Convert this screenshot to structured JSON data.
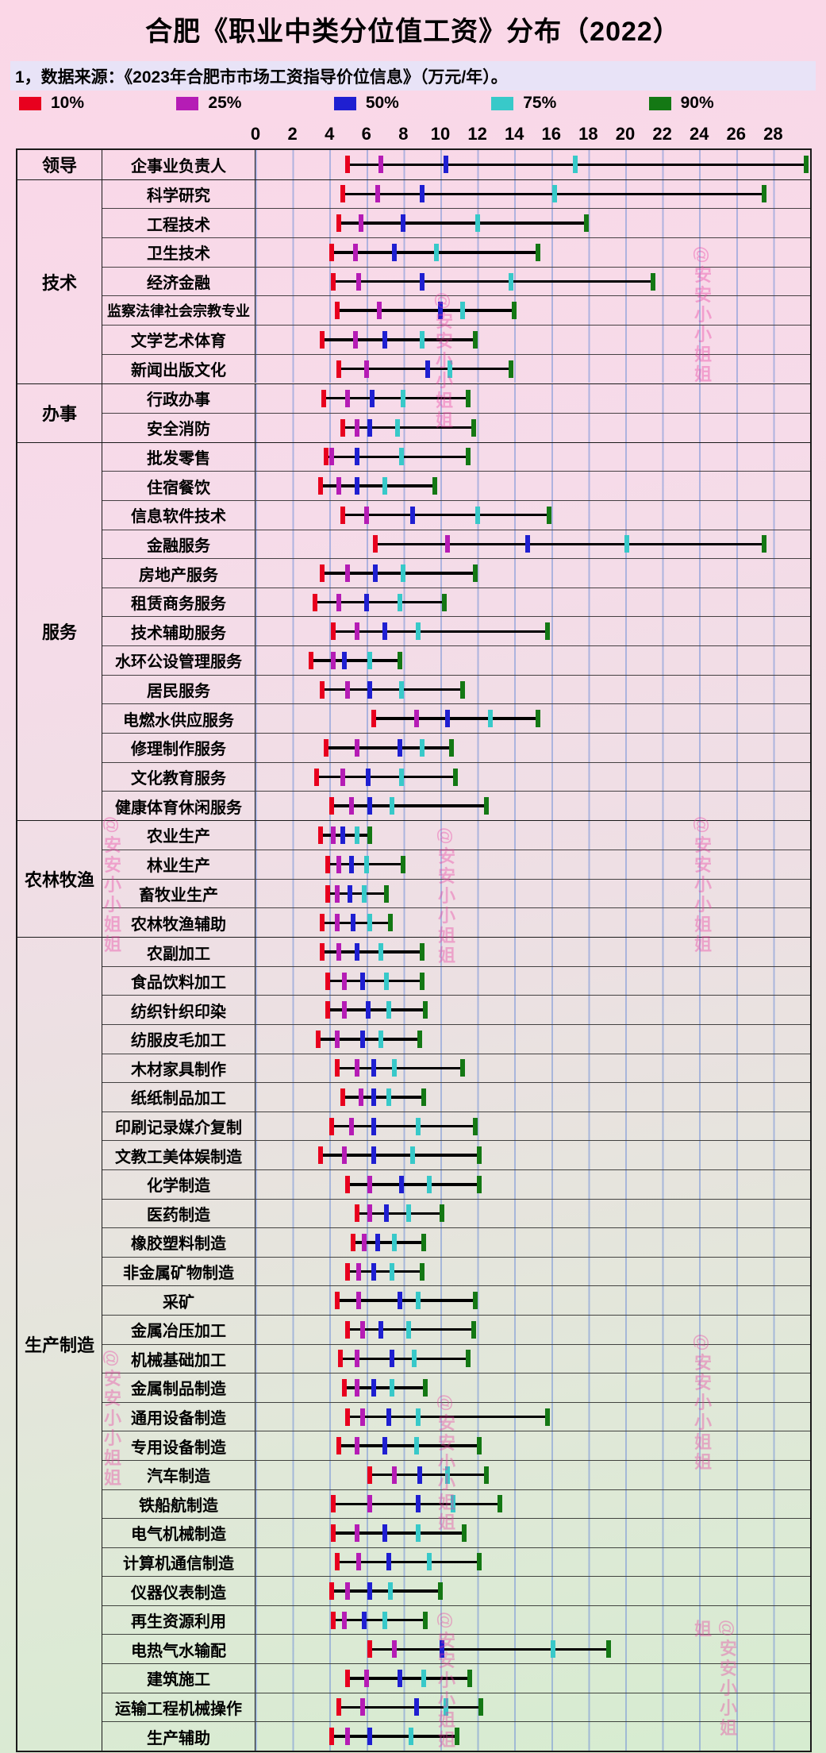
{
  "title": "合肥《职业中类分位值工资》分布（2022）",
  "note": "1，数据来源：《2023年合肥市市场工资指导价位信息》（万元/年）。",
  "watermark_text": "@安安小小姐姐",
  "legend": [
    {
      "label": "10%",
      "color": "#e8001e"
    },
    {
      "label": "25%",
      "color": "#b51cb5"
    },
    {
      "label": "50%",
      "color": "#1f1fd1"
    },
    {
      "label": "75%",
      "color": "#38c9c9"
    },
    {
      "label": "90%",
      "color": "#147814"
    }
  ],
  "chart_data": {
    "type": "scatter",
    "subtype": "percentile-range-dumbbell",
    "title": "合肥《职业中类分位值工资》分布（2022）",
    "unit": "万元/年",
    "percentiles": [
      "10%",
      "25%",
      "50%",
      "75%",
      "90%"
    ],
    "xticks": [
      0,
      2,
      4,
      6,
      8,
      10,
      12,
      14,
      16,
      18,
      20,
      22,
      24,
      26,
      28
    ],
    "xlim": [
      0,
      30
    ],
    "grid": true,
    "groups": [
      {
        "name": "领导",
        "rows": [
          {
            "label": "企事业负责人",
            "values": [
              5.0,
              6.8,
              10.3,
              17.3,
              29.8
            ]
          }
        ]
      },
      {
        "name": "技术",
        "rows": [
          {
            "label": "科学研究",
            "values": [
              4.7,
              6.6,
              9.0,
              16.2,
              27.5
            ]
          },
          {
            "label": "工程技术",
            "values": [
              4.5,
              5.7,
              8.0,
              12.0,
              17.9
            ]
          },
          {
            "label": "卫生技术",
            "values": [
              4.1,
              5.4,
              7.5,
              9.8,
              15.3
            ]
          },
          {
            "label": "经济金融",
            "values": [
              4.2,
              5.6,
              9.0,
              13.8,
              21.5
            ]
          },
          {
            "label": "监察法律社会宗教专业",
            "values": [
              4.4,
              6.7,
              10.0,
              11.2,
              14.0
            ]
          },
          {
            "label": "文学艺术体育",
            "values": [
              3.6,
              5.4,
              7.0,
              9.0,
              11.9
            ]
          },
          {
            "label": "新闻出版文化",
            "values": [
              4.5,
              6.0,
              9.3,
              10.5,
              13.8
            ]
          }
        ]
      },
      {
        "name": "办事",
        "rows": [
          {
            "label": "行政办事",
            "values": [
              3.7,
              5.0,
              6.3,
              8.0,
              11.5
            ]
          },
          {
            "label": "安全消防",
            "values": [
              4.7,
              5.5,
              6.2,
              7.7,
              11.8
            ]
          }
        ]
      },
      {
        "name": "服务",
        "rows": [
          {
            "label": "批发零售",
            "values": [
              3.8,
              4.1,
              5.5,
              7.9,
              11.5
            ]
          },
          {
            "label": "住宿餐饮",
            "values": [
              3.5,
              4.5,
              5.5,
              7.0,
              9.7
            ]
          },
          {
            "label": "信息软件技术",
            "values": [
              4.7,
              6.0,
              8.5,
              12.0,
              15.9
            ]
          },
          {
            "label": "金融服务",
            "values": [
              6.5,
              10.4,
              14.7,
              20.1,
              27.5
            ]
          },
          {
            "label": "房地产服务",
            "values": [
              3.6,
              5.0,
              6.5,
              8.0,
              11.9
            ]
          },
          {
            "label": "租赁商务服务",
            "values": [
              3.2,
              4.5,
              6.0,
              7.8,
              10.2
            ]
          },
          {
            "label": "技术辅助服务",
            "values": [
              4.2,
              5.5,
              7.0,
              8.8,
              15.8
            ]
          },
          {
            "label": "水环公设管理服务",
            "values": [
              3.0,
              4.2,
              4.8,
              6.2,
              7.8
            ]
          },
          {
            "label": "居民服务",
            "values": [
              3.6,
              5.0,
              6.2,
              7.9,
              11.2
            ]
          },
          {
            "label": "电燃水供应服务",
            "values": [
              6.4,
              8.7,
              10.4,
              12.7,
              15.3
            ]
          },
          {
            "label": "修理制作服务",
            "values": [
              3.8,
              5.5,
              7.8,
              9.0,
              10.6
            ]
          },
          {
            "label": "文化教育服务",
            "values": [
              3.3,
              4.7,
              6.1,
              7.9,
              10.8
            ]
          },
          {
            "label": "健康体育休闲服务",
            "values": [
              4.1,
              5.2,
              6.2,
              7.4,
              12.5
            ]
          }
        ]
      },
      {
        "name": "农林牧渔",
        "rows": [
          {
            "label": "农业生产",
            "values": [
              3.5,
              4.2,
              4.7,
              5.5,
              6.2
            ]
          },
          {
            "label": "林业生产",
            "values": [
              3.9,
              4.5,
              5.2,
              6.0,
              8.0
            ]
          },
          {
            "label": "畜牧业生产",
            "values": [
              3.9,
              4.4,
              5.1,
              5.9,
              7.1
            ]
          },
          {
            "label": "农林牧渔辅助",
            "values": [
              3.6,
              4.4,
              5.3,
              6.2,
              7.3
            ]
          }
        ]
      },
      {
        "name": "生产制造",
        "rows": [
          {
            "label": "农副加工",
            "values": [
              3.6,
              4.5,
              5.5,
              6.8,
              9.0
            ]
          },
          {
            "label": "食品饮料加工",
            "values": [
              3.9,
              4.8,
              5.8,
              7.1,
              9.0
            ]
          },
          {
            "label": "纺织针织印染",
            "values": [
              3.9,
              4.8,
              6.1,
              7.2,
              9.2
            ]
          },
          {
            "label": "纺服皮毛加工",
            "values": [
              3.4,
              4.4,
              5.8,
              6.8,
              8.9
            ]
          },
          {
            "label": "木材家具制作",
            "values": [
              4.4,
              5.5,
              6.4,
              7.5,
              11.2
            ]
          },
          {
            "label": "纸纸制品加工",
            "values": [
              4.7,
              5.7,
              6.4,
              7.2,
              9.1
            ]
          },
          {
            "label": "印刷记录媒介复制",
            "values": [
              4.1,
              5.2,
              6.4,
              8.8,
              11.9
            ]
          },
          {
            "label": "文教工美体娱制造",
            "values": [
              3.5,
              4.8,
              6.4,
              8.5,
              12.1
            ]
          },
          {
            "label": "化学制造",
            "values": [
              5.0,
              6.2,
              7.9,
              9.4,
              12.1
            ]
          },
          {
            "label": "医药制造",
            "values": [
              5.5,
              6.2,
              7.1,
              8.3,
              10.1
            ]
          },
          {
            "label": "橡胶塑料制造",
            "values": [
              5.3,
              5.9,
              6.6,
              7.5,
              9.1
            ]
          },
          {
            "label": "非金属矿物制造",
            "values": [
              5.0,
              5.6,
              6.4,
              7.4,
              9.0
            ]
          },
          {
            "label": "采矿",
            "values": [
              4.4,
              5.6,
              7.8,
              8.8,
              11.9
            ]
          },
          {
            "label": "金属冶压加工",
            "values": [
              5.0,
              5.8,
              6.8,
              8.3,
              11.8
            ]
          },
          {
            "label": "机械基础加工",
            "values": [
              4.6,
              5.5,
              7.4,
              8.6,
              11.5
            ]
          },
          {
            "label": "金属制品制造",
            "values": [
              4.8,
              5.5,
              6.4,
              7.4,
              9.2
            ]
          },
          {
            "label": "通用设备制造",
            "values": [
              5.0,
              5.8,
              7.2,
              8.8,
              15.8
            ]
          },
          {
            "label": "专用设备制造",
            "values": [
              4.5,
              5.5,
              7.0,
              8.7,
              12.1
            ]
          },
          {
            "label": "汽车制造",
            "values": [
              6.2,
              7.5,
              8.9,
              10.4,
              12.5
            ]
          },
          {
            "label": "铁船航制造",
            "values": [
              4.2,
              6.2,
              8.8,
              10.7,
              13.2
            ]
          },
          {
            "label": "电气机械制造",
            "values": [
              4.2,
              5.5,
              7.0,
              8.8,
              11.3
            ]
          },
          {
            "label": "计算机通信制造",
            "values": [
              4.4,
              5.6,
              7.2,
              9.4,
              12.1
            ]
          },
          {
            "label": "仪器仪表制造",
            "values": [
              4.1,
              5.0,
              6.2,
              7.3,
              10.0
            ]
          },
          {
            "label": "再生资源利用",
            "values": [
              4.2,
              4.8,
              5.9,
              7.0,
              9.2
            ]
          },
          {
            "label": "电热气水输配",
            "values": [
              6.2,
              7.5,
              10.1,
              16.1,
              19.1
            ]
          },
          {
            "label": "建筑施工",
            "values": [
              5.0,
              6.0,
              7.8,
              9.1,
              11.6
            ]
          },
          {
            "label": "运输工程机械操作",
            "values": [
              4.5,
              5.8,
              8.7,
              10.3,
              12.2
            ]
          },
          {
            "label": "生产辅助",
            "values": [
              4.1,
              5.0,
              6.2,
              8.4,
              10.9
            ]
          }
        ]
      }
    ]
  }
}
